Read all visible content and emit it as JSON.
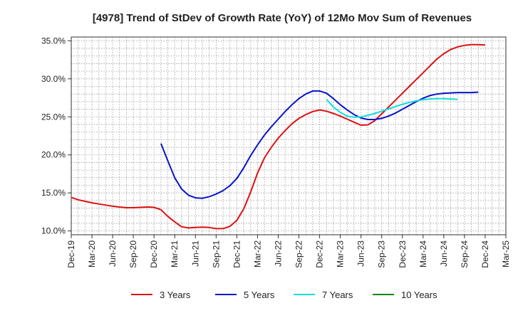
{
  "chart_data": {
    "type": "line",
    "title": "[4978]  Trend of StDev of Growth Rate (YoY) of 12Mo Mov Sum of Revenues",
    "xlabel": "",
    "ylabel": "",
    "x_ticks": [
      "Dec-19",
      "Mar-20",
      "Jun-20",
      "Sep-20",
      "Dec-20",
      "Mar-21",
      "Jun-21",
      "Sep-21",
      "Dec-21",
      "Mar-22",
      "Jun-22",
      "Sep-22",
      "Dec-22",
      "Mar-23",
      "Jun-23",
      "Sep-23",
      "Dec-23",
      "Mar-24",
      "Jun-24",
      "Sep-24",
      "Dec-24",
      "Mar-25"
    ],
    "y_ticks": [
      "10.0%",
      "15.0%",
      "20.0%",
      "25.0%",
      "30.0%",
      "35.0%"
    ],
    "y_tick_values": [
      10,
      15,
      20,
      25,
      30,
      35
    ],
    "ylim": [
      9.5,
      35.5
    ],
    "x_count": 21,
    "grid": true,
    "legend_position": "bottom",
    "series": [
      {
        "name": "3 Years",
        "color": "#dd1111",
        "start_index": 0,
        "values": [
          14.4,
          14.1,
          13.9,
          13.7,
          13.55,
          13.4,
          13.25,
          13.15,
          13.05,
          13.05,
          13.1,
          13.15,
          13.1,
          12.8,
          11.9,
          11.2,
          10.55,
          10.4,
          10.45,
          10.5,
          10.45,
          10.3,
          10.3,
          10.6,
          11.4,
          12.9,
          15.1,
          17.6,
          19.6,
          21.0,
          22.2,
          23.2,
          24.1,
          24.8,
          25.3,
          25.7,
          25.9,
          25.75,
          25.45,
          25.1,
          24.7,
          24.3,
          23.9,
          23.95,
          24.5,
          25.4,
          26.3,
          27.2,
          28.1,
          29.0,
          29.9,
          30.8,
          31.7,
          32.6,
          33.3,
          33.85,
          34.2,
          34.4,
          34.5,
          34.5,
          34.45
        ]
      },
      {
        "name": "5 Years",
        "color": "#0a14c8",
        "start_index": 13,
        "values": [
          21.5,
          19.2,
          17.0,
          15.5,
          14.7,
          14.35,
          14.3,
          14.5,
          14.85,
          15.3,
          15.95,
          16.9,
          18.3,
          19.9,
          21.3,
          22.6,
          23.7,
          24.7,
          25.7,
          26.6,
          27.4,
          28.0,
          28.4,
          28.4,
          28.1,
          27.4,
          26.6,
          25.9,
          25.3,
          24.85,
          24.65,
          24.65,
          24.8,
          25.1,
          25.5,
          26.0,
          26.5,
          27.0,
          27.45,
          27.8,
          28.0,
          28.1,
          28.15,
          28.2,
          28.2,
          28.2,
          28.25
        ]
      },
      {
        "name": "7 Years",
        "color": "#11dddd",
        "start_index": 37,
        "values": [
          27.3,
          26.3,
          25.6,
          25.1,
          24.95,
          25.0,
          25.2,
          25.45,
          25.75,
          26.05,
          26.35,
          26.65,
          26.9,
          27.1,
          27.25,
          27.35,
          27.4,
          27.4,
          27.35,
          27.3
        ]
      },
      {
        "name": "10 Years",
        "color": "#118811",
        "start_index": 0,
        "values": []
      }
    ]
  }
}
